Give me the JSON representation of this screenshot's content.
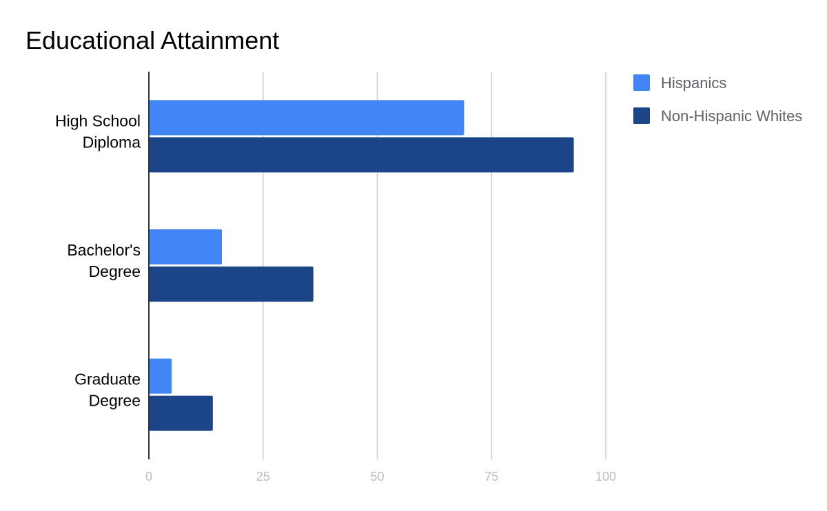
{
  "chart_data": {
    "type": "bar",
    "orientation": "horizontal",
    "title": "Educational Attainment",
    "categories": [
      [
        "High School",
        "Diploma"
      ],
      [
        "Bachelor's",
        "Degree"
      ],
      [
        "Graduate",
        "Degree"
      ]
    ],
    "series": [
      {
        "name": "Hispanics",
        "color": "#4285f4",
        "values": [
          69,
          16,
          5
        ]
      },
      {
        "name": "Non-Hispanic Whites",
        "color": "#1c4587",
        "values": [
          93,
          36,
          14
        ]
      }
    ],
    "xlim": [
      0,
      100
    ],
    "xticks": [
      "0",
      "25",
      "50",
      "75",
      "100"
    ],
    "grid": true,
    "legend_position": "right"
  }
}
